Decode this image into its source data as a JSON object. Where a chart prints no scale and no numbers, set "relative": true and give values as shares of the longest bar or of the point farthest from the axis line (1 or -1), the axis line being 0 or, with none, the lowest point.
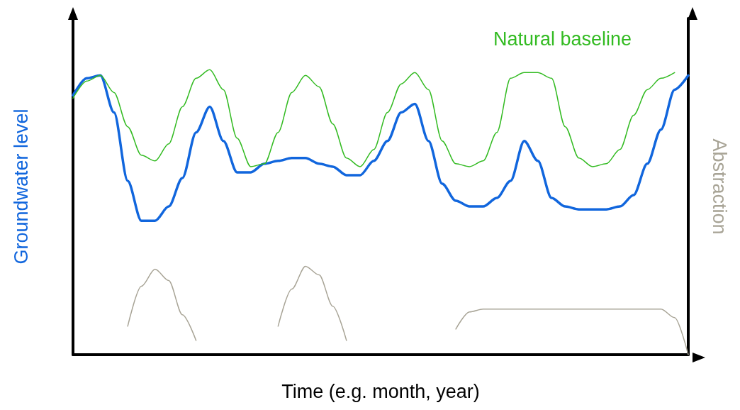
{
  "chart_data": {
    "type": "line",
    "relative": true,
    "xlabel": "Time (e.g. month, year)",
    "ylabel": "Groundwater level",
    "y2label": "Abstraction",
    "categories": [
      null,
      null,
      null,
      null,
      null,
      null,
      null,
      null,
      null,
      null,
      null,
      null,
      null,
      null,
      null,
      null,
      null,
      null,
      null,
      null,
      null,
      null,
      null,
      null,
      null,
      null,
      null,
      null,
      null,
      null,
      null,
      null,
      null,
      null,
      null,
      null,
      null,
      null,
      null,
      null,
      null,
      null,
      null,
      null,
      null,
      null
    ],
    "series": [
      {
        "name": "Natural baseline",
        "color": "#33bb22",
        "values": [
          0.9,
          0.96,
          0.98,
          0.92,
          0.8,
          0.7,
          0.68,
          0.74,
          0.87,
          0.97,
          1.0,
          0.93,
          0.76,
          0.66,
          0.67,
          0.78,
          0.92,
          0.98,
          0.94,
          0.81,
          0.69,
          0.66,
          0.72,
          0.85,
          0.95,
          0.99,
          0.93,
          0.75,
          0.67,
          0.66,
          0.68,
          0.78,
          0.97,
          0.99,
          0.99,
          0.97,
          0.8,
          0.69,
          0.66,
          0.67,
          0.72,
          0.84,
          0.93,
          0.97,
          0.99,
          null
        ]
      },
      {
        "color": "#1166dd",
        "values": [
          0.91,
          0.97,
          0.98,
          0.85,
          0.61,
          0.47,
          0.47,
          0.52,
          0.62,
          0.78,
          0.87,
          0.75,
          0.64,
          0.64,
          0.67,
          0.68,
          0.69,
          0.69,
          0.67,
          0.66,
          0.63,
          0.63,
          0.68,
          0.75,
          0.85,
          0.88,
          0.75,
          0.6,
          0.54,
          0.52,
          0.52,
          0.55,
          0.61,
          0.75,
          0.68,
          0.55,
          0.52,
          0.51,
          0.51,
          0.51,
          0.52,
          0.56,
          0.67,
          0.79,
          0.93,
          0.98
        ]
      },
      {
        "color": "#a8a496",
        "values": [
          null,
          null,
          null,
          null,
          0.1,
          0.24,
          0.3,
          0.26,
          0.14,
          0.05,
          null,
          null,
          null,
          null,
          null,
          0.1,
          0.23,
          0.31,
          0.28,
          0.17,
          0.05,
          null,
          null,
          null,
          null,
          null,
          null,
          null,
          0.09,
          0.15,
          0.16,
          0.16,
          0.16,
          0.16,
          0.16,
          0.16,
          0.16,
          0.16,
          0.16,
          0.16,
          0.16,
          0.16,
          0.16,
          0.16,
          0.13,
          0
        ]
      }
    ]
  }
}
